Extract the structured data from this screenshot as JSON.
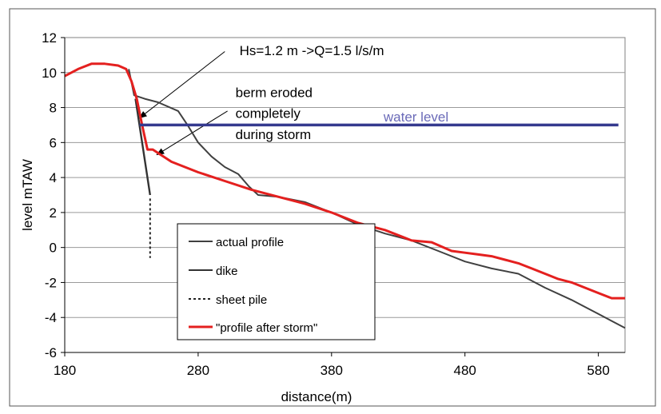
{
  "chart_data": {
    "type": "line",
    "title": "",
    "xlabel": "distance(m)",
    "ylabel": "level mTAW",
    "xlim": [
      180,
      600
    ],
    "ylim": [
      -6,
      12
    ],
    "x_ticks": [
      180,
      280,
      380,
      480,
      580
    ],
    "y_ticks": [
      -6,
      -4,
      -2,
      0,
      2,
      4,
      6,
      8,
      10,
      12
    ],
    "grid": {
      "horizontal": true,
      "vertical": false
    },
    "legend_position": "bottom-left",
    "series": [
      {
        "name": "actual profile",
        "color": "#404040",
        "style": "solid",
        "x": [
          228,
          232,
          240,
          250,
          265,
          272,
          280,
          290,
          300,
          310,
          318,
          325,
          340,
          360,
          380,
          400,
          420,
          440,
          460,
          480,
          500,
          520,
          540,
          560,
          580,
          600
        ],
        "y": [
          10.2,
          8.7,
          8.5,
          8.3,
          7.8,
          7.0,
          6.0,
          5.2,
          4.6,
          4.2,
          3.5,
          3.0,
          2.9,
          2.6,
          2.0,
          1.3,
          0.8,
          0.4,
          -0.2,
          -0.8,
          -1.2,
          -1.5,
          -2.3,
          -3.0,
          -3.8,
          -4.6
        ]
      },
      {
        "name": "dike",
        "color": "#333333",
        "style": "solid",
        "x": [
          233,
          244
        ],
        "y": [
          8.5,
          3.0
        ]
      },
      {
        "name": "sheet pile",
        "color": "#222222",
        "style": "dashed",
        "x": [
          244,
          244
        ],
        "y": [
          2.8,
          -0.6
        ]
      },
      {
        "name": "\"profile after storm\"",
        "color": "#e4201f",
        "style": "solid",
        "x": [
          180,
          190,
          200,
          210,
          220,
          226,
          230,
          234,
          238,
          242,
          246,
          250,
          260,
          280,
          300,
          320,
          340,
          360,
          380,
          400,
          420,
          440,
          455,
          470,
          480,
          490,
          500,
          510,
          520,
          530,
          540,
          550,
          560,
          570,
          580,
          590,
          600
        ],
        "y": [
          9.8,
          10.2,
          10.5,
          10.5,
          10.4,
          10.2,
          9.5,
          8.5,
          7.0,
          5.6,
          5.6,
          5.4,
          4.9,
          4.3,
          3.8,
          3.3,
          2.9,
          2.5,
          2.0,
          1.4,
          1.0,
          0.4,
          0.3,
          -0.2,
          -0.3,
          -0.4,
          -0.5,
          -0.7,
          -0.9,
          -1.2,
          -1.5,
          -1.8,
          -2.0,
          -2.3,
          -2.6,
          -2.9,
          -2.9
        ]
      },
      {
        "name": "water level",
        "color": "#353a8f",
        "style": "solid",
        "x": [
          236,
          595
        ],
        "y": [
          7.0,
          7.0
        ]
      }
    ],
    "annotations": [
      {
        "text": "Hs=1.2 m  ->Q=1.5 l/s/m",
        "x": 311,
        "y": 11.0
      },
      {
        "text": "berm eroded",
        "x": 308,
        "y": 8.6
      },
      {
        "text": "completely",
        "x": 308,
        "y": 7.4
      },
      {
        "text": "during storm",
        "x": 308,
        "y": 6.2
      },
      {
        "text": "water level",
        "x": 419,
        "y": 7.2,
        "color": "#6a6ab8"
      }
    ],
    "arrows": [
      {
        "from": [
          300,
          11.2
        ],
        "to": [
          236,
          7.4
        ]
      },
      {
        "from": [
          302,
          7.8
        ],
        "to": [
          249,
          5.3
        ]
      }
    ]
  }
}
